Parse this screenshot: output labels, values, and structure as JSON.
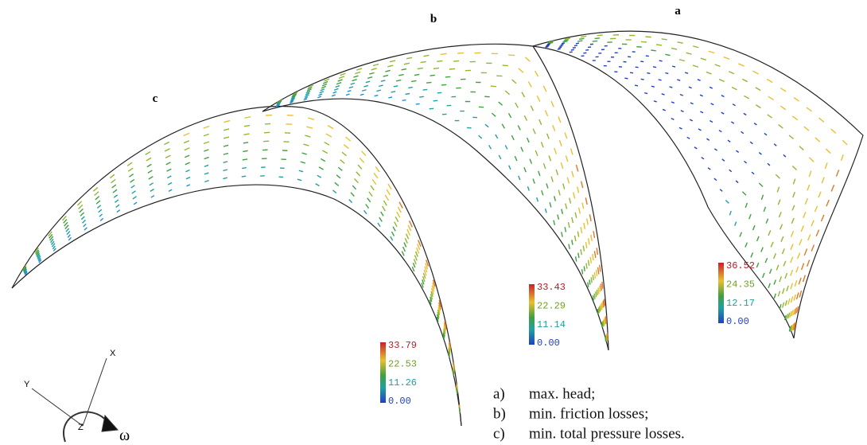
{
  "panels": [
    {
      "label": "c",
      "colorbar": [
        "33.79",
        "22.53",
        "11.26",
        "0.00"
      ]
    },
    {
      "label": "b",
      "colorbar": [
        "33.43",
        "22.29",
        "11.14",
        "0.00"
      ]
    },
    {
      "label": "a",
      "colorbar": [
        "36.52",
        "24.35",
        "12.17",
        "0.00"
      ]
    }
  ],
  "axes": {
    "x": "X",
    "y": "Y",
    "z": "Z",
    "omega": "ω"
  },
  "legend": [
    {
      "key": "a)",
      "text": "max. head;"
    },
    {
      "key": "b)",
      "text": "min. friction losses;"
    },
    {
      "key": "c)",
      "text": "min. total pressure losses."
    }
  ]
}
